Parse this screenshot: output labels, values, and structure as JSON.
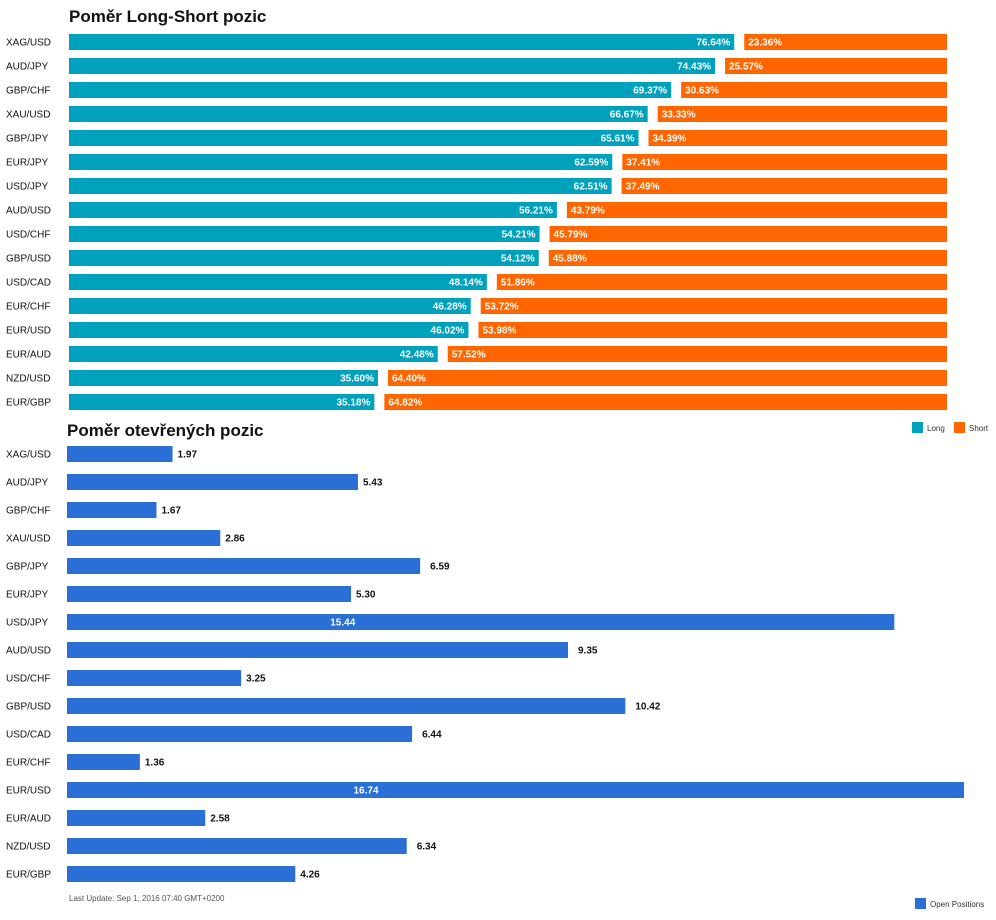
{
  "colors": {
    "long": "#00a1bd",
    "short": "#ff6600",
    "open": "#2a6fd6"
  },
  "legend": {
    "long": "Long",
    "short": "Short",
    "open": "Open Positions"
  },
  "footer": "Last Update: Sep 1, 2016 07:40 GMT+0200",
  "chart_data": [
    {
      "type": "bar",
      "orientation": "horizontal",
      "stacked": true,
      "title": "Poměr Long-Short pozic",
      "categories": [
        "XAG/USD",
        "AUD/JPY",
        "GBP/CHF",
        "XAU/USD",
        "GBP/JPY",
        "EUR/JPY",
        "USD/JPY",
        "AUD/USD",
        "USD/CHF",
        "GBP/USD",
        "USD/CAD",
        "EUR/CHF",
        "EUR/USD",
        "EUR/AUD",
        "NZD/USD",
        "EUR/GBP"
      ],
      "series": [
        {
          "name": "Long",
          "values": [
            76.64,
            74.43,
            69.37,
            66.67,
            65.61,
            62.59,
            62.51,
            56.21,
            54.21,
            54.12,
            48.14,
            46.28,
            46.02,
            42.48,
            35.6,
            35.18
          ],
          "labels": [
            "76.64%",
            "74.43%",
            "69.37%",
            "66.67%",
            "65.61%",
            "62.59%",
            "62.51%",
            "56.21%",
            "54.21%",
            "54.12%",
            "48.14%",
            "46.28%",
            "46.02%",
            "42.48%",
            "35.60%",
            "35.18%"
          ]
        },
        {
          "name": "Short",
          "values": [
            23.36,
            25.57,
            30.63,
            33.33,
            34.39,
            37.41,
            37.49,
            43.79,
            45.79,
            45.88,
            51.86,
            53.72,
            53.98,
            57.52,
            64.4,
            64.82
          ],
          "labels": [
            "23.36%",
            "25.57%",
            "30.63%",
            "33.33%",
            "34.39%",
            "37.41%",
            "37.49%",
            "43.79%",
            "45.79%",
            "45.88%",
            "51.86%",
            "53.72%",
            "53.98%",
            "57.52%",
            "64.40%",
            "64.82%"
          ]
        }
      ],
      "xlim": [
        0,
        100
      ],
      "legend_position": "bottom-right"
    },
    {
      "type": "bar",
      "orientation": "horizontal",
      "title": "Poměr otevřených pozic",
      "categories": [
        "XAG/USD",
        "AUD/JPY",
        "GBP/CHF",
        "XAU/USD",
        "GBP/JPY",
        "EUR/JPY",
        "USD/JPY",
        "AUD/USD",
        "USD/CHF",
        "GBP/USD",
        "USD/CAD",
        "EUR/CHF",
        "EUR/USD",
        "EUR/AUD",
        "NZD/USD",
        "EUR/GBP"
      ],
      "series": [
        {
          "name": "Open Positions",
          "values": [
            1.97,
            5.43,
            1.67,
            2.86,
            6.59,
            5.3,
            15.44,
            9.35,
            3.25,
            10.42,
            6.44,
            1.36,
            16.74,
            2.58,
            6.34,
            4.26
          ],
          "labels": [
            "1.97",
            "5.43",
            "1.67",
            "2.86",
            "6.59",
            "5.30",
            "15.44",
            "9.35",
            "3.25",
            "10.42",
            "6.44",
            "1.36",
            "16.74",
            "2.58",
            "6.34",
            "4.26"
          ]
        }
      ],
      "xlim": [
        0,
        16.74
      ],
      "legend_position": "bottom-right"
    }
  ]
}
